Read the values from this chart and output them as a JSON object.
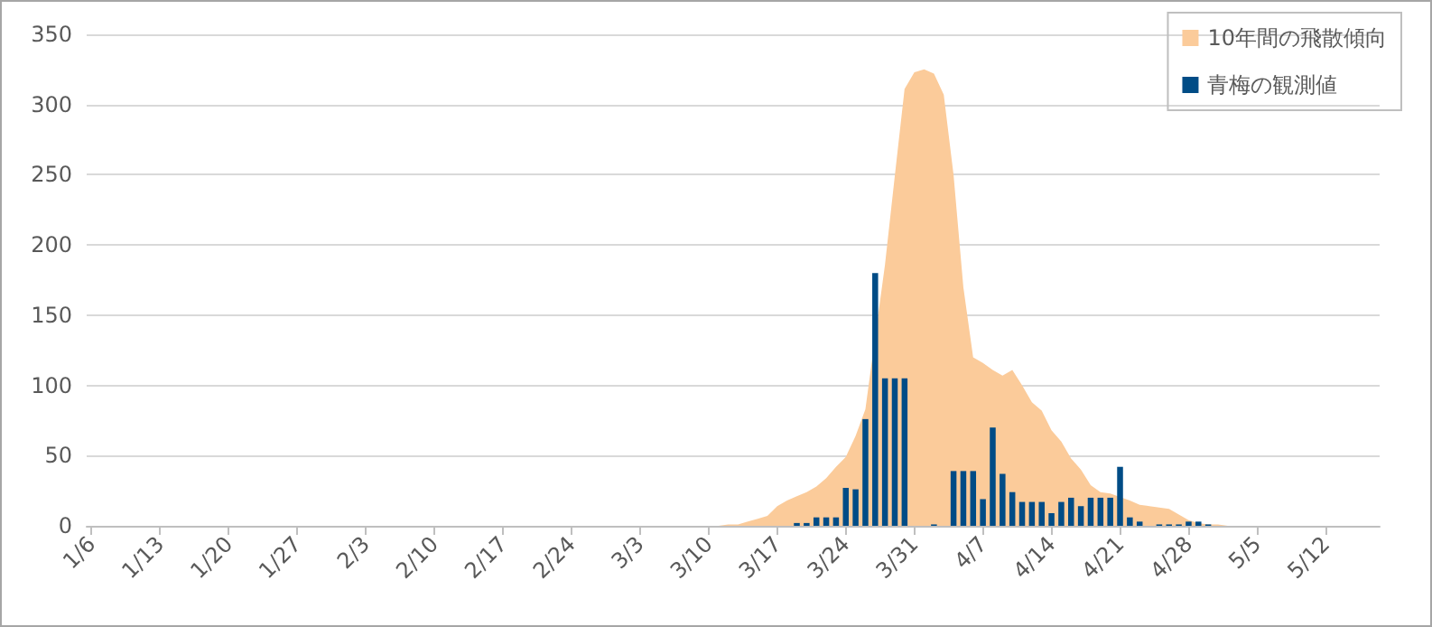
{
  "chart_data": {
    "type": "bar",
    "categories": [
      "1/6",
      null,
      null,
      null,
      null,
      null,
      null,
      "1/13",
      null,
      null,
      null,
      null,
      null,
      null,
      "1/20",
      null,
      null,
      null,
      null,
      null,
      null,
      "1/27",
      null,
      null,
      null,
      null,
      null,
      null,
      "2/3",
      null,
      null,
      null,
      null,
      null,
      null,
      "2/10",
      null,
      null,
      null,
      null,
      null,
      null,
      "2/17",
      null,
      null,
      null,
      null,
      null,
      null,
      "2/24",
      null,
      null,
      null,
      null,
      null,
      null,
      "3/3",
      null,
      null,
      null,
      null,
      null,
      null,
      "3/10",
      null,
      null,
      null,
      null,
      null,
      null,
      "3/17",
      null,
      null,
      null,
      null,
      null,
      null,
      "3/24",
      null,
      null,
      null,
      null,
      null,
      null,
      "3/31",
      null,
      null,
      null,
      null,
      null,
      null,
      "4/7",
      null,
      null,
      null,
      null,
      null,
      null,
      "4/14",
      null,
      null,
      null,
      null,
      null,
      null,
      "4/21",
      null,
      null,
      null,
      null,
      null,
      null,
      "4/28",
      null,
      null,
      null,
      null,
      null,
      null,
      "5/5",
      null,
      null,
      null,
      null,
      null,
      null,
      "5/12",
      null,
      null,
      null,
      null,
      null
    ],
    "series": [
      {
        "name": "10年間の飛散傾向",
        "type": "area",
        "color": "#fbcb9a",
        "values": [
          null,
          null,
          null,
          null,
          null,
          null,
          null,
          null,
          null,
          null,
          null,
          null,
          null,
          null,
          null,
          null,
          null,
          null,
          null,
          null,
          null,
          null,
          null,
          null,
          null,
          null,
          null,
          null,
          null,
          null,
          null,
          null,
          null,
          null,
          null,
          null,
          null,
          null,
          null,
          null,
          null,
          null,
          null,
          null,
          null,
          null,
          null,
          null,
          null,
          null,
          null,
          null,
          null,
          null,
          null,
          null,
          null,
          null,
          null,
          null,
          null,
          null,
          null,
          0,
          0,
          1,
          1,
          3,
          5,
          7,
          14,
          18,
          21,
          24,
          28,
          34,
          42,
          49,
          64,
          83,
          null,
          186,
          249,
          311,
          323,
          325,
          322,
          307,
          250,
          170,
          120,
          116,
          111,
          107,
          111,
          100,
          88,
          82,
          68,
          60,
          48,
          40,
          29,
          24,
          23,
          null,
          18,
          15,
          14,
          13,
          12,
          8,
          4,
          2,
          1,
          1,
          0,
          0,
          0,
          0,
          null,
          null,
          null,
          null,
          null,
          null,
          null,
          null,
          null,
          null,
          null,
          null
        ]
      },
      {
        "name": "青梅の観測値",
        "color": "#004c86",
        "values": [
          null,
          null,
          null,
          null,
          null,
          null,
          null,
          null,
          null,
          null,
          null,
          null,
          null,
          null,
          null,
          null,
          null,
          null,
          null,
          null,
          null,
          null,
          null,
          null,
          null,
          null,
          null,
          null,
          null,
          null,
          null,
          null,
          null,
          null,
          null,
          null,
          null,
          null,
          null,
          null,
          null,
          null,
          null,
          null,
          null,
          null,
          null,
          null,
          null,
          null,
          null,
          null,
          null,
          null,
          null,
          null,
          null,
          null,
          null,
          null,
          null,
          null,
          null,
          null,
          null,
          null,
          null,
          null,
          null,
          null,
          null,
          null,
          2,
          2,
          6,
          6,
          6,
          27,
          26,
          76,
          180,
          105,
          105,
          105,
          null,
          null,
          1,
          null,
          39,
          39,
          39,
          19,
          70,
          37,
          24,
          17,
          17,
          17,
          9,
          17,
          20,
          14,
          20,
          20,
          20,
          42,
          6,
          3,
          null,
          1,
          1,
          1,
          3,
          3,
          1,
          null,
          null,
          null,
          null,
          null,
          null,
          null,
          null,
          null,
          null,
          null,
          null,
          null,
          null,
          null,
          null,
          null
        ]
      }
    ],
    "ylim": [
      0,
      350
    ],
    "yticks": [
      0,
      50,
      100,
      150,
      200,
      250,
      300,
      350
    ],
    "grid": "y",
    "legend": "top right"
  }
}
